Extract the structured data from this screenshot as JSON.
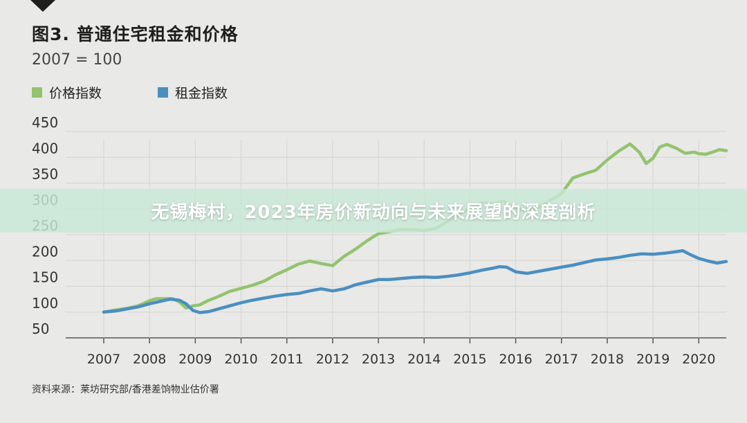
{
  "overlay": {
    "title": "无锡梅村，2023年房价新动向与未来展望的深度剖析"
  },
  "source": "资料来源：莱坊研究部/香港差饷物业估价署",
  "colors": {
    "price": "#93c36e",
    "rent": "#4a8fc0",
    "grid": "#d7d7d5",
    "axis": "#555555",
    "background": "#e9e9e7"
  },
  "chart_data": {
    "type": "line",
    "title": "图3. 普通住宅租金和价格",
    "subtitle": "2007 = 100",
    "xlabel": "",
    "ylabel": "",
    "xlim": [
      2007,
      2020.6
    ],
    "ylim": [
      50,
      450
    ],
    "yticks": [
      "450",
      "400",
      "350",
      "300",
      "250",
      "200",
      "150",
      "100",
      "50"
    ],
    "xticks": [
      "2007",
      "2008",
      "2009",
      "2010",
      "2011",
      "2012",
      "2013",
      "2014",
      "2015",
      "2016",
      "2017",
      "2018",
      "2019",
      "2020"
    ],
    "grid": true,
    "legend_position": "top-left",
    "series": [
      {
        "name": "价格指数",
        "x": [
          2007.0,
          2007.25,
          2007.5,
          2007.75,
          2008.0,
          2008.15,
          2008.3,
          2008.5,
          2008.65,
          2008.8,
          2008.95,
          2009.1,
          2009.25,
          2009.5,
          2009.75,
          2010.0,
          2010.25,
          2010.5,
          2010.75,
          2011.0,
          2011.25,
          2011.5,
          2011.75,
          2012.0,
          2012.25,
          2012.5,
          2012.75,
          2013.0,
          2013.25,
          2013.5,
          2013.75,
          2014.0,
          2014.25,
          2014.5,
          2014.75,
          2015.0,
          2015.25,
          2015.5,
          2015.75,
          2016.0,
          2016.25,
          2016.5,
          2016.75,
          2017.0,
          2017.25,
          2017.5,
          2017.75,
          2018.0,
          2018.25,
          2018.5,
          2018.7,
          2018.85,
          2019.0,
          2019.15,
          2019.3,
          2019.5,
          2019.7,
          2019.9,
          2020.0,
          2020.15,
          2020.3,
          2020.45,
          2020.6
        ],
        "values": [
          100,
          104,
          107,
          112,
          122,
          126,
          126,
          126,
          120,
          108,
          112,
          114,
          121,
          130,
          140,
          146,
          152,
          160,
          172,
          182,
          193,
          199,
          194,
          190,
          208,
          222,
          238,
          252,
          256,
          260,
          260,
          258,
          262,
          275,
          290,
          300,
          312,
          310,
          315,
          300,
          297,
          303,
          316,
          330,
          360,
          368,
          375,
          395,
          412,
          426,
          410,
          388,
          398,
          420,
          425,
          418,
          408,
          410,
          407,
          406,
          410,
          415,
          413
        ]
      },
      {
        "name": "租金指数",
        "x": [
          2007.0,
          2007.25,
          2007.5,
          2007.75,
          2008.0,
          2008.25,
          2008.45,
          2008.65,
          2008.8,
          2008.95,
          2009.1,
          2009.3,
          2009.5,
          2009.75,
          2010.0,
          2010.25,
          2010.5,
          2010.75,
          2011.0,
          2011.25,
          2011.5,
          2011.75,
          2012.0,
          2012.25,
          2012.5,
          2012.75,
          2013.0,
          2013.25,
          2013.5,
          2013.75,
          2014.0,
          2014.25,
          2014.5,
          2014.75,
          2015.0,
          2015.25,
          2015.5,
          2015.65,
          2015.8,
          2016.0,
          2016.25,
          2016.5,
          2016.75,
          2017.0,
          2017.25,
          2017.5,
          2017.75,
          2018.0,
          2018.25,
          2018.5,
          2018.75,
          2019.0,
          2019.25,
          2019.5,
          2019.65,
          2019.8,
          2020.0,
          2020.2,
          2020.4,
          2020.6
        ],
        "values": [
          100,
          102,
          106,
          110,
          116,
          121,
          125,
          123,
          116,
          103,
          99,
          101,
          106,
          112,
          118,
          123,
          127,
          131,
          134,
          136,
          141,
          145,
          141,
          145,
          153,
          158,
          163,
          163,
          165,
          167,
          168,
          167,
          169,
          172,
          176,
          181,
          185,
          188,
          187,
          178,
          175,
          179,
          183,
          187,
          191,
          196,
          201,
          203,
          206,
          210,
          213,
          212,
          214,
          217,
          219,
          212,
          204,
          199,
          195,
          198
        ]
      }
    ]
  }
}
